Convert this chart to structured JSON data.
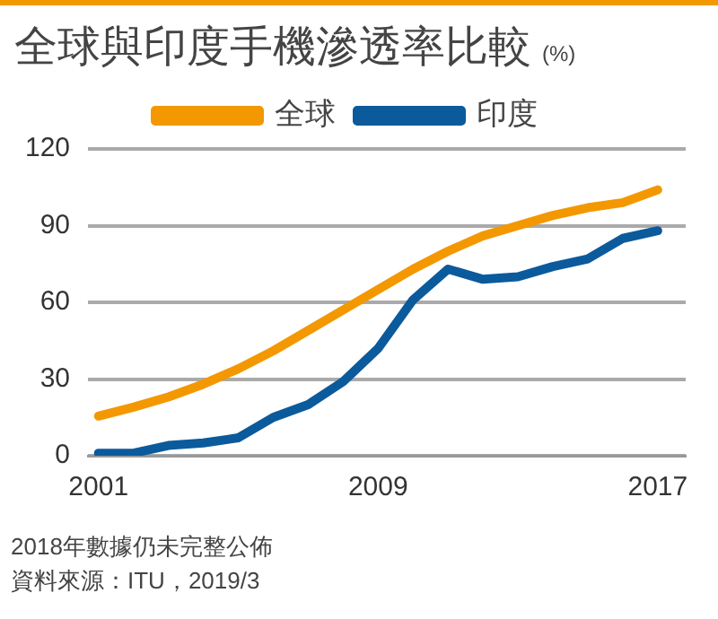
{
  "chart_data": {
    "type": "line",
    "title": "全球與印度手機滲透率比較",
    "ylabel": "(%)",
    "x": [
      2001,
      2002,
      2003,
      2004,
      2005,
      2006,
      2007,
      2008,
      2009,
      2010,
      2011,
      2012,
      2013,
      2014,
      2015,
      2016,
      2017
    ],
    "series": [
      {
        "name": "全球",
        "color": "#f39800",
        "values": [
          15.5,
          19,
          23,
          28,
          34,
          41,
          49,
          57,
          65,
          73,
          80,
          86,
          90,
          94,
          97,
          99,
          104
        ]
      },
      {
        "name": "印度",
        "color": "#0b5a9c",
        "values": [
          1,
          1,
          4,
          5,
          7,
          15,
          20,
          29,
          42,
          61,
          73,
          69,
          70,
          74,
          77,
          85,
          88
        ]
      }
    ],
    "xlim": [
      2000.7,
      2017.8
    ],
    "xticks": [
      2001,
      2009,
      2017
    ],
    "ylim": [
      0,
      120
    ],
    "yticks": [
      0,
      30,
      60,
      90,
      120
    ],
    "grid": "y",
    "legend": "top",
    "marker": "none",
    "line_style": "solid",
    "annotations": [
      "2018年數據仍未完整公佈",
      "資料來源：ITU，2019/3"
    ]
  }
}
